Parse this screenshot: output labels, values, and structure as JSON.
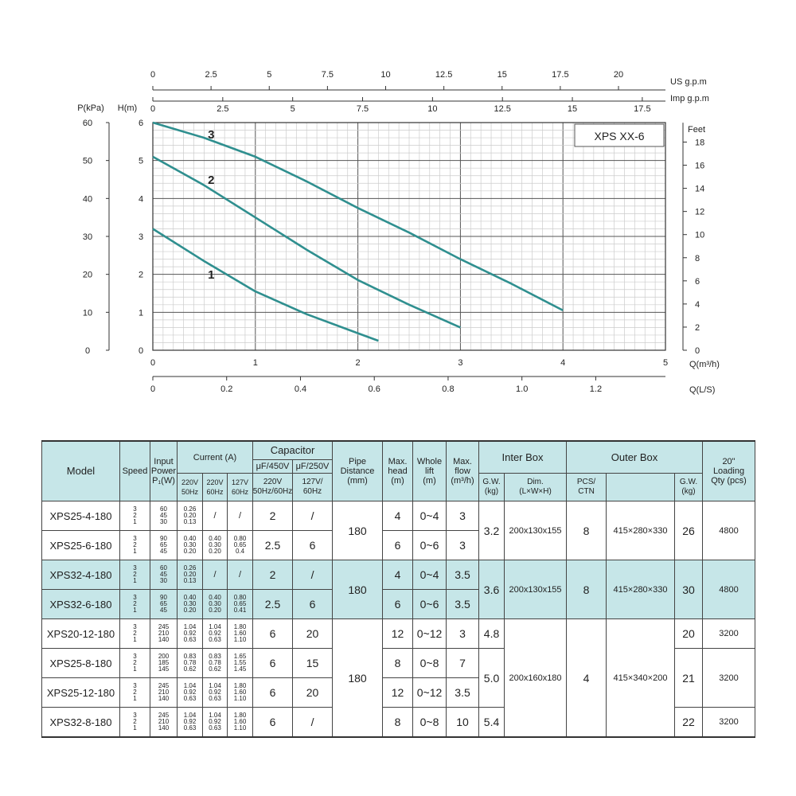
{
  "chart_data": {
    "type": "line",
    "model_label": "XPS  XX-6",
    "x_primary": {
      "label": "Q(m³/h)",
      "range": [
        0,
        5
      ],
      "ticks": [
        "0",
        "1",
        "2",
        "3",
        "4",
        "5"
      ]
    },
    "x_ls": {
      "label": "Q(L/S)",
      "range": [
        0,
        1.389
      ],
      "ticks": [
        "0",
        "0.2",
        "0.4",
        "0.6",
        "0.8",
        "1.0",
        "1.2"
      ]
    },
    "x_us": {
      "label": "US  g.p.m",
      "ticks": [
        "0",
        "2.5",
        "5",
        "7.5",
        "10",
        "12.5",
        "15",
        "17.5",
        "20"
      ]
    },
    "x_imp": {
      "label": "Imp  g.p.m",
      "ticks": [
        "0",
        "2.5",
        "5",
        "7.5",
        "10",
        "12.5",
        "15",
        "17.5"
      ]
    },
    "y_h": {
      "label": "H(m)",
      "range": [
        0,
        6
      ],
      "ticks": [
        "0",
        "1",
        "2",
        "3",
        "4",
        "5",
        "6"
      ]
    },
    "y_kpa": {
      "label": "P(kPa)",
      "ticks": [
        "0",
        "10",
        "20",
        "30",
        "40",
        "50",
        "60"
      ]
    },
    "y_feet": {
      "label": "Feet",
      "ticks": [
        "0",
        "2",
        "4",
        "6",
        "8",
        "10",
        "12",
        "14",
        "16",
        "18"
      ]
    },
    "grid": true,
    "series": [
      {
        "name": "1",
        "x": [
          0,
          0.5,
          1.0,
          1.5,
          2.0,
          2.2
        ],
        "y": [
          3.2,
          2.35,
          1.55,
          0.95,
          0.45,
          0.25
        ]
      },
      {
        "name": "2",
        "x": [
          0,
          0.5,
          1.0,
          1.5,
          2.0,
          2.5,
          3.0
        ],
        "y": [
          5.1,
          4.35,
          3.5,
          2.65,
          1.85,
          1.2,
          0.6
        ]
      },
      {
        "name": "3",
        "x": [
          0,
          0.5,
          1.0,
          1.5,
          2.0,
          2.5,
          3.0,
          3.5,
          4.0
        ],
        "y": [
          6.0,
          5.6,
          5.1,
          4.45,
          3.75,
          3.1,
          2.4,
          1.75,
          1.05
        ]
      }
    ],
    "colors": {
      "curve": "#2f8f8f",
      "grid": "#cccccc",
      "header_fill": "#c6e6e8"
    }
  },
  "table": {
    "headers": {
      "model": "Model",
      "speed": "Speed",
      "input_power_l1": "Input",
      "input_power_l2": "Power",
      "input_power_l3": "P₁(W)",
      "current": "Current  (A)",
      "cur_220_50": [
        "220V",
        "50Hz"
      ],
      "cur_220_60": [
        "220V",
        "60Hz"
      ],
      "cur_127_60": [
        "127V",
        "60Hz"
      ],
      "capacitor": "Capacitor",
      "cap_450": "μF/450V",
      "cap_250": "μF/250V",
      "cap_450_sub": [
        "220V",
        "50Hz/60Hz"
      ],
      "cap_250_sub": [
        "127V/",
        "60Hz"
      ],
      "pipe": [
        "Pipe",
        "Distance",
        "(mm)"
      ],
      "max_head": [
        "Max.",
        "head",
        "(m)"
      ],
      "whole_lift": [
        "Whole",
        "lift",
        "(m)"
      ],
      "max_flow": [
        "Max.",
        "flow",
        "(m³/h)"
      ],
      "inter_box": "Inter Box",
      "inter_gw": [
        "G.W.",
        "(kg)"
      ],
      "inter_dim": [
        "Dim.",
        "(L×W×H)"
      ],
      "outer_box": "Outer Box",
      "outer_pcs": [
        "PCS/",
        "CTN"
      ],
      "outer_gw": [
        "G.W.",
        "(kg)"
      ],
      "loading": [
        "20\"",
        "Loading",
        "Qty (pcs)"
      ]
    },
    "rows": [
      {
        "model": "XPS25-4-180",
        "speed": [
          "3",
          "2",
          "1"
        ],
        "power": [
          "60",
          "45",
          "30"
        ],
        "c220_50": [
          "0.26",
          "0.20",
          "0.13"
        ],
        "c220_60": "/",
        "c127_60": "/",
        "cap450": "2",
        "cap250": "/",
        "head": "4",
        "lift": "0~4",
        "flow": "3"
      },
      {
        "model": "XPS25-6-180",
        "speed": [
          "3",
          "2",
          "1"
        ],
        "power": [
          "90",
          "65",
          "45"
        ],
        "c220_50": [
          "0.40",
          "0.30",
          "0.20"
        ],
        "c220_60": [
          "0.40",
          "0.30",
          "0.20"
        ],
        "c127_60": [
          "0.80",
          "0.65",
          "0.4"
        ],
        "cap450": "2.5",
        "cap250": "6",
        "head": "6",
        "lift": "0~6",
        "flow": "3"
      },
      {
        "model": "XPS32-4-180",
        "speed": [
          "3",
          "2",
          "1"
        ],
        "power": [
          "60",
          "45",
          "30"
        ],
        "c220_50": [
          "0.26",
          "0.20",
          "0.13"
        ],
        "c220_60": "/",
        "c127_60": "/",
        "cap450": "2",
        "cap250": "/",
        "head": "4",
        "lift": "0~4",
        "flow": "3.5"
      },
      {
        "model": "XPS32-6-180",
        "speed": [
          "3",
          "2",
          "1"
        ],
        "power": [
          "90",
          "65",
          "45"
        ],
        "c220_50": [
          "0.40",
          "0.30",
          "0.20"
        ],
        "c220_60": [
          "0.40",
          "0.30",
          "0.20"
        ],
        "c127_60": [
          "0.80",
          "0.65",
          "0.41"
        ],
        "cap450": "2.5",
        "cap250": "6",
        "head": "6",
        "lift": "0~6",
        "flow": "3.5"
      },
      {
        "model": "XPS20-12-180",
        "speed": [
          "3",
          "2",
          "1"
        ],
        "power": [
          "245",
          "210",
          "140"
        ],
        "c220_50": [
          "1.04",
          "0.92",
          "0.63"
        ],
        "c220_60": [
          "1.04",
          "0.92",
          "0.63"
        ],
        "c127_60": [
          "1.80",
          "1.60",
          "1.10"
        ],
        "cap450": "6",
        "cap250": "20",
        "head": "12",
        "lift": "0~12",
        "flow": "3"
      },
      {
        "model": "XPS25-8-180",
        "speed": [
          "3",
          "2",
          "1"
        ],
        "power": [
          "200",
          "185",
          "145"
        ],
        "c220_50": [
          "0.83",
          "0.78",
          "0.62"
        ],
        "c220_60": [
          "0.83",
          "0.78",
          "0.62"
        ],
        "c127_60": [
          "1.65",
          "1.55",
          "1.45"
        ],
        "cap450": "6",
        "cap250": "15",
        "head": "8",
        "lift": "0~8",
        "flow": "7"
      },
      {
        "model": "XPS25-12-180",
        "speed": [
          "3",
          "2",
          "1"
        ],
        "power": [
          "245",
          "210",
          "140"
        ],
        "c220_50": [
          "1.04",
          "0.92",
          "0.63"
        ],
        "c220_60": [
          "1.04",
          "0.92",
          "0.63"
        ],
        "c127_60": [
          "1.80",
          "1.60",
          "1.10"
        ],
        "cap450": "6",
        "cap250": "20",
        "head": "12",
        "lift": "0~12",
        "flow": "3.5"
      },
      {
        "model": "XPS32-8-180",
        "speed": [
          "3",
          "2",
          "1"
        ],
        "power": [
          "245",
          "210",
          "140"
        ],
        "c220_50": [
          "1.04",
          "0.92",
          "0.63"
        ],
        "c220_60": [
          "1.04",
          "0.92",
          "0.63"
        ],
        "c127_60": [
          "1.80",
          "1.60",
          "1.10"
        ],
        "cap450": "6",
        "cap250": "/",
        "head": "8",
        "lift": "0~8",
        "flow": "10"
      }
    ],
    "groups": {
      "g1": {
        "pipe": "180",
        "inter_gw": "3.2",
        "inter_dim": "200x130x155",
        "pcs": "8",
        "outer_dim": "415×280×330",
        "outer_gw": "26",
        "loading": "4800"
      },
      "g2": {
        "pipe": "180",
        "inter_gw": "3.6",
        "inter_dim": "200x130x155",
        "pcs": "8",
        "outer_dim": "415×280×330",
        "outer_gw": "30",
        "loading": "4800"
      },
      "g3": {
        "pipe": "180",
        "inter_gw_a": "4.8",
        "inter_gw_b": "5.0",
        "inter_gw_c": "5.4",
        "inter_dim": "200x160x180",
        "pcs": "4",
        "outer_dim": "415×340×200",
        "outer_gw_a": "20",
        "outer_gw_b": "21",
        "outer_gw_c": "22",
        "loading_a": "3200",
        "loading_b": "3200",
        "loading_c": "3200"
      }
    }
  }
}
